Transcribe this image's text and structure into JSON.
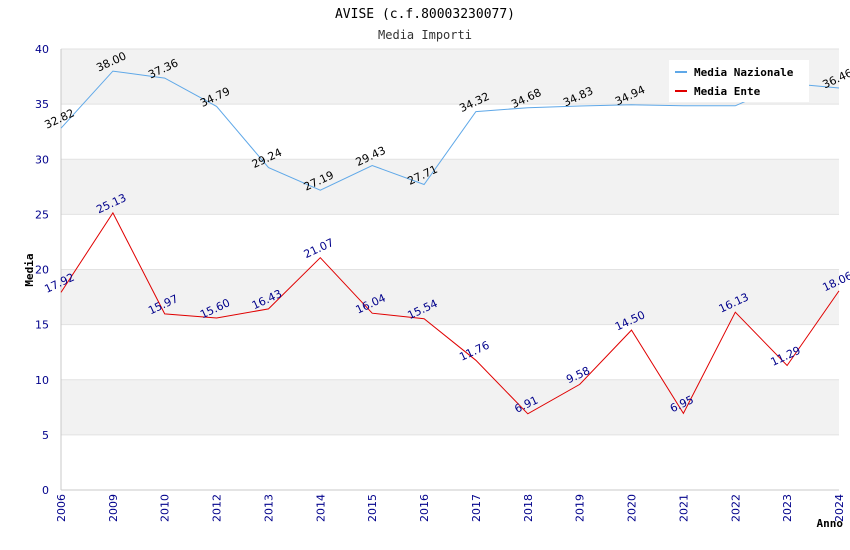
{
  "chart_data": {
    "type": "line",
    "title": "AVISE (c.f.80003230077)",
    "subtitle": "Media Importi",
    "xlabel": "Anno",
    "ylabel": "Media",
    "ylim": [
      0,
      40
    ],
    "yticks": [
      0,
      5,
      10,
      15,
      20,
      25,
      30,
      35,
      40
    ],
    "categories": [
      "2006",
      "2009",
      "2010",
      "2012",
      "2013",
      "2014",
      "2015",
      "2016",
      "2017",
      "2018",
      "2019",
      "2020",
      "2021",
      "2022",
      "2023",
      "2024"
    ],
    "series": [
      {
        "name": "Media Nazionale",
        "color": "#5fa8e8",
        "values": [
          32.82,
          38.0,
          37.36,
          34.79,
          29.24,
          27.19,
          29.43,
          27.71,
          34.32,
          34.68,
          34.83,
          34.94,
          34.85,
          34.85,
          36.9,
          36.46
        ],
        "labels": [
          "32.82",
          "38.00",
          "37.36",
          "34.79",
          "29.24",
          "27.19",
          "29.43",
          "27.71",
          "34.32",
          "34.68",
          "34.83",
          "34.94",
          "",
          "",
          "",
          "36.46"
        ]
      },
      {
        "name": "Media Ente",
        "color": "#e00000",
        "values": [
          17.92,
          25.13,
          15.97,
          15.6,
          16.43,
          21.07,
          16.04,
          15.54,
          11.76,
          6.91,
          9.58,
          14.5,
          6.95,
          16.13,
          11.29,
          18.06
        ],
        "labels": [
          "17.92",
          "25.13",
          "15.97",
          "15.60",
          "16.43",
          "21.07",
          "16.04",
          "15.54",
          "11.76",
          "6.91",
          "9.58",
          "14.50",
          "6.95",
          "16.13",
          "11.29",
          "18.06"
        ]
      }
    ],
    "legend_position": "top-right",
    "grid": true
  }
}
